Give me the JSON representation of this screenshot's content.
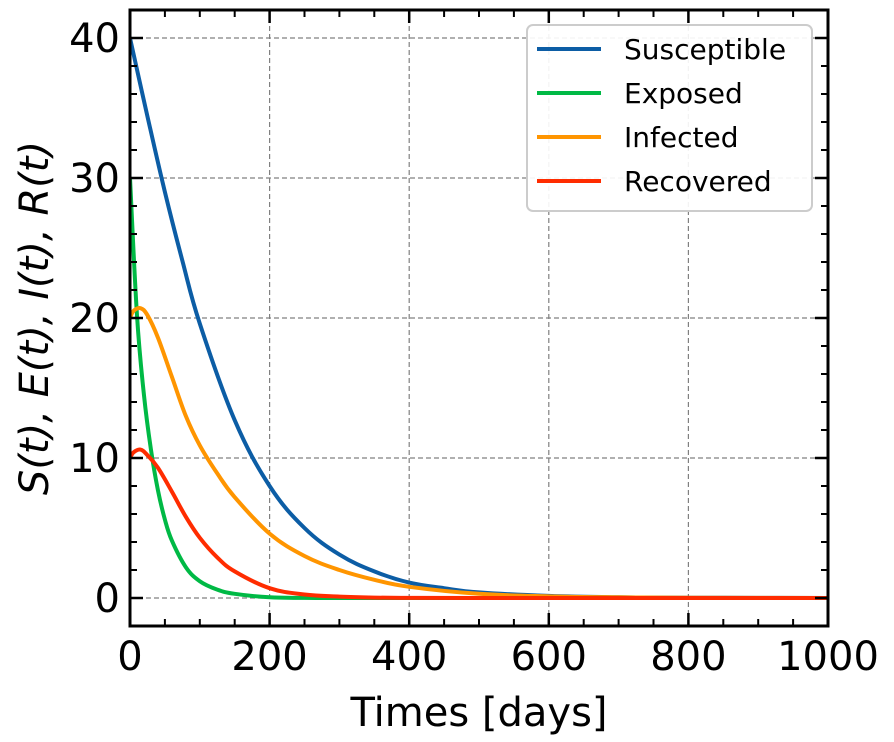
{
  "chart_data": {
    "type": "line",
    "xlabel": "Times [days]",
    "ylabel": "S(t), E(t), I(t), R(t)",
    "xlim": [
      0,
      1000
    ],
    "ylim": [
      -2,
      42
    ],
    "xticks": [
      0,
      200,
      400,
      600,
      800,
      1000
    ],
    "yticks": [
      0,
      10,
      20,
      30,
      40
    ],
    "xtick_labels": [
      "0",
      "200",
      "400",
      "600",
      "800",
      "1000"
    ],
    "ytick_labels": [
      "0",
      "10",
      "20",
      "30",
      "40"
    ],
    "grid": true,
    "legend_position": "top-right",
    "series": [
      {
        "name": "Susceptible",
        "color": "#0c5da5",
        "x": [
          0,
          25,
          50,
          75,
          100,
          150,
          200,
          250,
          300,
          350,
          400,
          450,
          500,
          600,
          700,
          800,
          900,
          1000
        ],
        "y": [
          40,
          34.4,
          29.0,
          24.1,
          19.6,
          12.7,
          8.0,
          5.0,
          3.1,
          1.9,
          1.1,
          0.7,
          0.4,
          0.15,
          0.05,
          0.02,
          0.01,
          0
        ]
      },
      {
        "name": "Exposed",
        "color": "#00b945",
        "x": [
          0,
          10,
          20,
          30,
          40,
          50,
          60,
          80,
          100,
          125,
          150,
          200,
          250,
          300,
          400,
          1000
        ],
        "y": [
          30,
          20.2,
          14.5,
          10.6,
          7.7,
          5.6,
          4.1,
          2.2,
          1.2,
          0.6,
          0.3,
          0.05,
          0.01,
          0,
          0,
          0
        ]
      },
      {
        "name": "Infected",
        "color": "#ff9500",
        "x": [
          0,
          5,
          15,
          25,
          40,
          60,
          80,
          100,
          125,
          150,
          200,
          250,
          300,
          350,
          400,
          500,
          600,
          700,
          800,
          1000
        ],
        "y": [
          20,
          20.5,
          20.7,
          20.2,
          18.6,
          15.8,
          13.0,
          10.9,
          8.9,
          7.2,
          4.6,
          3.0,
          2.0,
          1.3,
          0.8,
          0.3,
          0.12,
          0.05,
          0.02,
          0
        ]
      },
      {
        "name": "Recovered",
        "color": "#ff2c00",
        "x": [
          0,
          5,
          15,
          25,
          40,
          60,
          80,
          100,
          125,
          150,
          200,
          250,
          300,
          350,
          400,
          500,
          1000
        ],
        "y": [
          10,
          10.4,
          10.6,
          10.2,
          9.3,
          7.6,
          5.8,
          4.3,
          2.9,
          1.9,
          0.7,
          0.25,
          0.1,
          0.03,
          0.01,
          0,
          0
        ]
      }
    ]
  }
}
